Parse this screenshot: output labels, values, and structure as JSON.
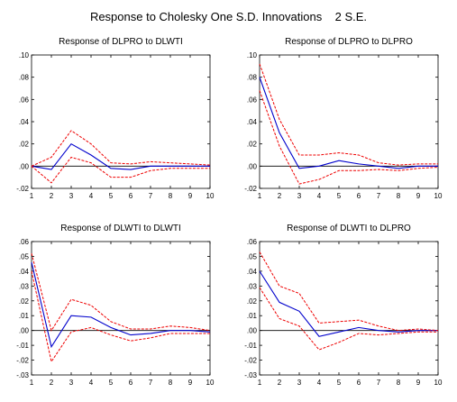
{
  "figure_title": "Response to Cholesky One S.D. Innovations    2 S.E.",
  "colors": {
    "response": "#0000cc",
    "band": "#ee0000",
    "axis": "#000000",
    "zero": "#000000"
  },
  "chart_data": [
    {
      "type": "line",
      "title": "Response of DLPRO to DLWTI",
      "x": [
        1,
        2,
        3,
        4,
        5,
        6,
        7,
        8,
        9,
        10
      ],
      "xticks": [
        "1",
        "2",
        "3",
        "4",
        "5",
        "6",
        "7",
        "8",
        "9",
        "10"
      ],
      "ylim": [
        -0.02,
        0.1
      ],
      "yticks": [
        -0.02,
        0.0,
        0.02,
        0.04,
        0.06,
        0.08,
        0.1
      ],
      "ytick_labels": [
        "-.02",
        ".00",
        ".02",
        ".04",
        ".06",
        ".08",
        ".10"
      ],
      "series": [
        {
          "values": [
            0.0,
            -0.003,
            0.02,
            0.01,
            -0.002,
            -0.003,
            0.0,
            0.0,
            0.0,
            0.0
          ]
        },
        {
          "values": [
            0.0,
            0.008,
            0.032,
            0.02,
            0.003,
            0.002,
            0.004,
            0.003,
            0.002,
            0.001
          ]
        },
        {
          "values": [
            0.0,
            -0.015,
            0.008,
            0.003,
            -0.01,
            -0.01,
            -0.004,
            -0.002,
            -0.002,
            -0.002
          ]
        }
      ]
    },
    {
      "type": "line",
      "title": "Response of DLPRO to DLPRO",
      "x": [
        1,
        2,
        3,
        4,
        5,
        6,
        7,
        8,
        9,
        10
      ],
      "xticks": [
        "1",
        "2",
        "3",
        "4",
        "5",
        "6",
        "7",
        "8",
        "9",
        "10"
      ],
      "ylim": [
        -0.02,
        0.1
      ],
      "yticks": [
        -0.02,
        0.0,
        0.02,
        0.04,
        0.06,
        0.08,
        0.1
      ],
      "ytick_labels": [
        "-.02",
        ".00",
        ".02",
        ".04",
        ".06",
        ".08",
        ".10"
      ],
      "series": [
        {
          "values": [
            0.08,
            0.03,
            -0.002,
            0.0,
            0.005,
            0.002,
            0.0,
            -0.002,
            0.0,
            0.0
          ]
        },
        {
          "values": [
            0.092,
            0.042,
            0.01,
            0.01,
            0.012,
            0.01,
            0.003,
            0.001,
            0.002,
            0.002
          ]
        },
        {
          "values": [
            0.068,
            0.018,
            -0.016,
            -0.012,
            -0.004,
            -0.004,
            -0.003,
            -0.004,
            -0.002,
            -0.001
          ]
        }
      ]
    },
    {
      "type": "line",
      "title": "Response of DLWTI to DLWTI",
      "x": [
        1,
        2,
        3,
        4,
        5,
        6,
        7,
        8,
        9,
        10
      ],
      "xticks": [
        "1",
        "2",
        "3",
        "4",
        "5",
        "6",
        "7",
        "8",
        "9",
        "10"
      ],
      "ylim": [
        -0.03,
        0.06
      ],
      "yticks": [
        -0.03,
        -0.02,
        -0.01,
        0.0,
        0.01,
        0.02,
        0.03,
        0.04,
        0.05,
        0.06
      ],
      "ytick_labels": [
        "-.03",
        "-.02",
        "-.01",
        ".00",
        ".01",
        ".02",
        ".03",
        ".04",
        ".05",
        ".06"
      ],
      "series": [
        {
          "values": [
            0.046,
            -0.011,
            0.01,
            0.009,
            0.002,
            -0.003,
            -0.002,
            0.0,
            0.0,
            -0.001
          ]
        },
        {
          "values": [
            0.052,
            0.0,
            0.021,
            0.017,
            0.006,
            0.001,
            0.001,
            0.003,
            0.002,
            0.0
          ]
        },
        {
          "values": [
            0.04,
            -0.021,
            -0.001,
            0.002,
            -0.003,
            -0.007,
            -0.005,
            -0.002,
            -0.002,
            -0.002
          ]
        }
      ]
    },
    {
      "type": "line",
      "title": "Response of DLWTI to DLPRO",
      "x": [
        1,
        2,
        3,
        4,
        5,
        6,
        7,
        8,
        9,
        10
      ],
      "xticks": [
        "1",
        "2",
        "3",
        "4",
        "5",
        "6",
        "7",
        "8",
        "9",
        "10"
      ],
      "ylim": [
        -0.03,
        0.06
      ],
      "yticks": [
        -0.03,
        -0.02,
        -0.01,
        0.0,
        0.01,
        0.02,
        0.03,
        0.04,
        0.05,
        0.06
      ],
      "ytick_labels": [
        "-.03",
        "-.02",
        "-.01",
        ".00",
        ".01",
        ".02",
        ".03",
        ".04",
        ".05",
        ".06"
      ],
      "series": [
        {
          "values": [
            0.04,
            0.019,
            0.013,
            -0.004,
            -0.001,
            0.002,
            0.0,
            -0.001,
            0.0,
            0.0
          ]
        },
        {
          "values": [
            0.053,
            0.03,
            0.025,
            0.005,
            0.006,
            0.007,
            0.003,
            0.0,
            0.001,
            0.0
          ]
        },
        {
          "values": [
            0.029,
            0.008,
            0.003,
            -0.013,
            -0.008,
            -0.002,
            -0.003,
            -0.002,
            -0.001,
            -0.001
          ]
        }
      ]
    }
  ]
}
